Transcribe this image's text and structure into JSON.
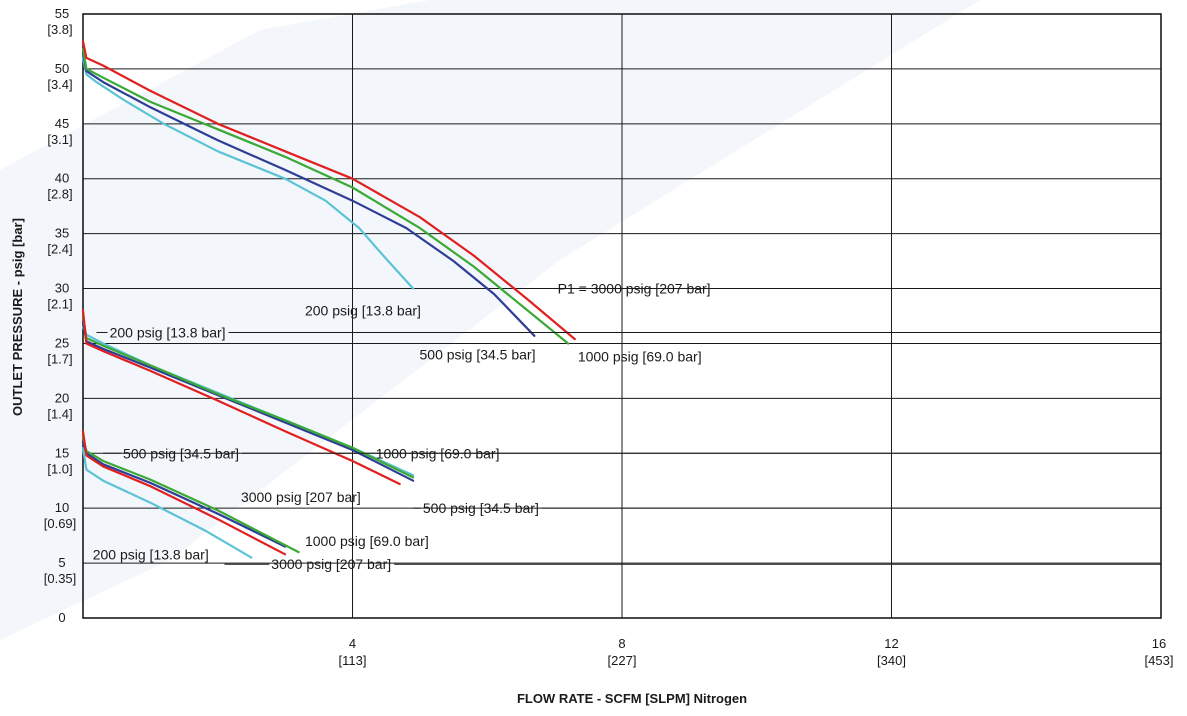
{
  "chart_data": {
    "type": "line",
    "xlabel": "FLOW RATE - SCFM [SLPM] Nitrogen",
    "ylabel": "OUTLET PRESSURE - psig [bar]",
    "xlim": [
      0,
      16
    ],
    "ylim": [
      0,
      55
    ],
    "grid": true,
    "x_ticks": [
      {
        "value": 4,
        "label": "4",
        "sublabel": "[113]"
      },
      {
        "value": 8,
        "label": "8",
        "sublabel": "[227]"
      },
      {
        "value": 12,
        "label": "12",
        "sublabel": "[340]"
      },
      {
        "value": 16,
        "label": "16",
        "sublabel": "[453]"
      }
    ],
    "y_ticks": [
      {
        "value": 0,
        "label": "0",
        "sublabel": ""
      },
      {
        "value": 5,
        "label": "5",
        "sublabel": "[0.35]"
      },
      {
        "value": 10,
        "label": "10",
        "sublabel": "[0.69]"
      },
      {
        "value": 15,
        "label": "15",
        "sublabel": "[1.0]"
      },
      {
        "value": 20,
        "label": "20",
        "sublabel": "[1.4]"
      },
      {
        "value": 25,
        "label": "25",
        "sublabel": "[1.7]"
      },
      {
        "value": 30,
        "label": "30",
        "sublabel": "[2.1]"
      },
      {
        "value": 35,
        "label": "35",
        "sublabel": "[2.4]"
      },
      {
        "value": 40,
        "label": "40",
        "sublabel": "[2.8]"
      },
      {
        "value": 45,
        "label": "45",
        "sublabel": "[3.1]"
      },
      {
        "value": 50,
        "label": "50",
        "sublabel": "[3.4]"
      },
      {
        "value": 55,
        "label": "55",
        "sublabel": "[3.8]"
      }
    ],
    "colors": {
      "200 psig": "#5bc3d6",
      "500 psig": "#2e3d96",
      "1000 psig": "#3ba935",
      "3000 psig": "#e02020",
      "grid": "#1a1a1a",
      "watermark": "#dce6f2"
    },
    "groups": [
      {
        "setpoint": 50,
        "series": [
          {
            "name": "200 psig [13.8 bar]",
            "color": "#5bc3d6",
            "x": [
              0.0,
              0.05,
              0.2,
              0.6,
              1.2,
              2.0,
              3.0,
              3.6,
              4.1,
              4.5,
              4.9
            ],
            "y": [
              51.0,
              49.5,
              48.8,
              47.2,
              45.0,
              42.5,
              40.0,
              38.0,
              35.5,
              32.7,
              30.0
            ]
          },
          {
            "name": "500 psig [34.5 bar]",
            "color": "#2e3d96",
            "x": [
              0.0,
              0.05,
              0.3,
              1.0,
              2.0,
              3.0,
              4.0,
              4.8,
              5.5,
              6.1,
              6.7
            ],
            "y": [
              51.5,
              49.8,
              48.8,
              46.5,
              43.5,
              40.8,
              38.0,
              35.5,
              32.5,
              29.5,
              25.7
            ]
          },
          {
            "name": "1000 psig [69.0 bar]",
            "color": "#3ba935",
            "x": [
              0.0,
              0.05,
              0.3,
              1.0,
              2.0,
              3.0,
              4.0,
              5.0,
              5.8,
              6.5,
              7.2
            ],
            "y": [
              51.8,
              50.0,
              49.2,
              47.0,
              44.5,
              42.0,
              39.2,
              35.5,
              32.0,
              28.5,
              25.0
            ]
          },
          {
            "name": "P1 = 3000 psig [207 bar]",
            "color": "#e02020",
            "x": [
              0.0,
              0.05,
              0.3,
              1.0,
              2.0,
              3.0,
              4.0,
              5.0,
              5.8,
              6.6,
              7.3
            ],
            "y": [
              52.5,
              51.0,
              50.3,
              48.0,
              45.0,
              42.5,
              40.0,
              36.5,
              33.0,
              29.0,
              25.4
            ]
          }
        ]
      },
      {
        "setpoint": 25,
        "series": [
          {
            "name": "200 psig [13.8 bar]",
            "color": "#5bc3d6",
            "x": [
              0.0,
              0.05,
              0.3,
              1.0,
              2.0,
              3.0,
              4.0,
              4.9
            ],
            "y": [
              26.5,
              25.8,
              25.0,
              23.0,
              20.5,
              18.0,
              15.5,
              13.0
            ]
          },
          {
            "name": "500 psig [34.5 bar]",
            "color": "#2e3d96",
            "x": [
              0.0,
              0.05,
              0.3,
              1.0,
              2.0,
              3.0,
              4.0,
              4.9
            ],
            "y": [
              27.0,
              25.2,
              24.5,
              22.8,
              20.3,
              17.8,
              15.3,
              12.5
            ]
          },
          {
            "name": "1000 psig [69.0 bar]",
            "color": "#3ba935",
            "x": [
              0.0,
              0.05,
              0.3,
              1.0,
              2.0,
              3.0,
              4.0,
              4.9
            ],
            "y": [
              27.5,
              25.5,
              24.8,
              23.0,
              20.4,
              18.0,
              15.5,
              12.8
            ]
          },
          {
            "name": "3000 psig [207 bar]",
            "color": "#e02020",
            "x": [
              0.0,
              0.05,
              0.3,
              1.0,
              2.0,
              3.0,
              4.0,
              4.7
            ],
            "y": [
              28.0,
              25.0,
              24.3,
              22.5,
              19.8,
              17.0,
              14.3,
              12.2
            ]
          }
        ]
      },
      {
        "setpoint": 15,
        "series": [
          {
            "name": "200 psig [13.8 bar]",
            "color": "#5bc3d6",
            "x": [
              0.0,
              0.05,
              0.3,
              1.0,
              1.8,
              2.5
            ],
            "y": [
              15.5,
              13.5,
              12.5,
              10.5,
              8.0,
              5.5
            ]
          },
          {
            "name": "500 psig [34.5 bar]",
            "color": "#2e3d96",
            "x": [
              0.0,
              0.05,
              0.3,
              1.0,
              2.0,
              3.0
            ],
            "y": [
              16.0,
              15.0,
              14.0,
              12.3,
              9.5,
              6.5
            ]
          },
          {
            "name": "1000 psig [69.0 bar]",
            "color": "#3ba935",
            "x": [
              0.0,
              0.05,
              0.3,
              1.0,
              2.0,
              3.2
            ],
            "y": [
              16.5,
              15.2,
              14.3,
              12.6,
              9.8,
              6.0
            ]
          },
          {
            "name": "3000 psig [207 bar]",
            "color": "#e02020",
            "x": [
              0.0,
              0.05,
              0.3,
              1.0,
              2.0,
              3.0
            ],
            "y": [
              17.0,
              14.8,
              13.8,
              12.0,
              9.0,
              5.8
            ]
          }
        ]
      }
    ],
    "annotations": [
      {
        "text": "200 psig [13.8 bar]",
        "x": 3.25,
        "y": 28.0,
        "anchor": "start",
        "leader": false
      },
      {
        "text": "P1 = 3000 psig [207 bar]",
        "x": 7.0,
        "y": 30.0,
        "anchor": "start",
        "leader": true,
        "line_from": 6.65,
        "line_to": 7.0,
        "line_to2": 16.0
      },
      {
        "text": "500 psig [34.5 bar]",
        "x": 4.95,
        "y": 24.0,
        "anchor": "start",
        "leader": false
      },
      {
        "text": "1000 psig [69.0 bar]",
        "x": 7.3,
        "y": 23.8,
        "anchor": "start",
        "leader": false
      },
      {
        "text": "200 psig [13.8 bar]",
        "x": 0.35,
        "y": 26.0,
        "anchor": "start",
        "leader": true,
        "line_from": 0.2,
        "line_to": 0.35,
        "line_to2": 16.0
      },
      {
        "text": "500 psig [34.5 bar]",
        "x": 0.55,
        "y": 15.0,
        "anchor": "start",
        "leader": true,
        "line_from": 0.3,
        "line_to": 0.55,
        "line_to2": 16.0
      },
      {
        "text": "1000 psig [69.0 bar]",
        "x": 4.3,
        "y": 15.0,
        "anchor": "start",
        "leader": false
      },
      {
        "text": "3000 psig [207 bar]",
        "x": 2.3,
        "y": 11.0,
        "anchor": "start",
        "leader": false
      },
      {
        "text": "500 psig [34.5 bar]",
        "x": 5.0,
        "y": 10.0,
        "anchor": "start",
        "leader": true,
        "line_from": 4.9,
        "line_to": 5.0,
        "line_to2": 16.0
      },
      {
        "text": "1000 psig [69.0 bar]",
        "x": 3.25,
        "y": 7.0,
        "anchor": "start",
        "leader": false
      },
      {
        "text": "200 psig [13.8 bar]",
        "x": 0.1,
        "y": 5.8,
        "anchor": "start",
        "leader": false
      },
      {
        "text": "3000 psig [207 bar]",
        "x": 2.75,
        "y": 4.9,
        "anchor": "start",
        "leader": true,
        "line_from": 2.1,
        "line_to": 2.75,
        "line_to2": 16.0
      }
    ]
  }
}
